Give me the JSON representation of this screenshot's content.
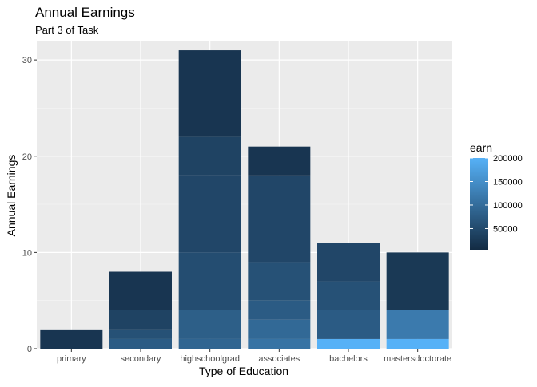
{
  "chart_data": {
    "type": "bar",
    "title": "Annual Earnings",
    "subtitle": "Part 3 of Task",
    "xlabel": "Type of Education",
    "ylabel": "Annual Earnings",
    "ylim": [
      0,
      32
    ],
    "y_ticks": [
      0,
      10,
      20,
      30
    ],
    "grid": true,
    "categories": [
      "primary",
      "secondary",
      "highschoolgrad",
      "associates",
      "bachelors",
      "mastersdoctorate"
    ],
    "values": [
      2,
      8,
      31,
      21,
      11,
      10
    ],
    "stack_segments": [
      [
        {
          "count": 2,
          "earn": 20000
        }
      ],
      [
        {
          "count": 1,
          "earn": 75000
        },
        {
          "count": 1,
          "earn": 60000
        },
        {
          "count": 2,
          "earn": 40000
        },
        {
          "count": 4,
          "earn": 20000
        }
      ],
      [
        {
          "count": 1,
          "earn": 90000
        },
        {
          "count": 3,
          "earn": 80000
        },
        {
          "count": 6,
          "earn": 55000
        },
        {
          "count": 8,
          "earn": 45000
        },
        {
          "count": 4,
          "earn": 40000
        },
        {
          "count": 9,
          "earn": 20000
        }
      ],
      [
        {
          "count": 1,
          "earn": 110000
        },
        {
          "count": 2,
          "earn": 95000
        },
        {
          "count": 2,
          "earn": 75000
        },
        {
          "count": 4,
          "earn": 60000
        },
        {
          "count": 9,
          "earn": 45000
        },
        {
          "count": 3,
          "earn": 20000
        }
      ],
      [
        {
          "count": 1,
          "earn": 200000
        },
        {
          "count": 3,
          "earn": 75000
        },
        {
          "count": 3,
          "earn": 60000
        },
        {
          "count": 4,
          "earn": 45000
        }
      ],
      [
        {
          "count": 1,
          "earn": 200000
        },
        {
          "count": 3,
          "earn": 120000
        },
        {
          "count": 6,
          "earn": 25000
        }
      ]
    ],
    "legend": {
      "title": "earn",
      "position": "right",
      "min": 5000,
      "max": 200000,
      "ticks": [
        200000,
        150000,
        100000,
        50000
      ],
      "low_color": "#132B43",
      "high_color": "#56B1F7"
    }
  }
}
